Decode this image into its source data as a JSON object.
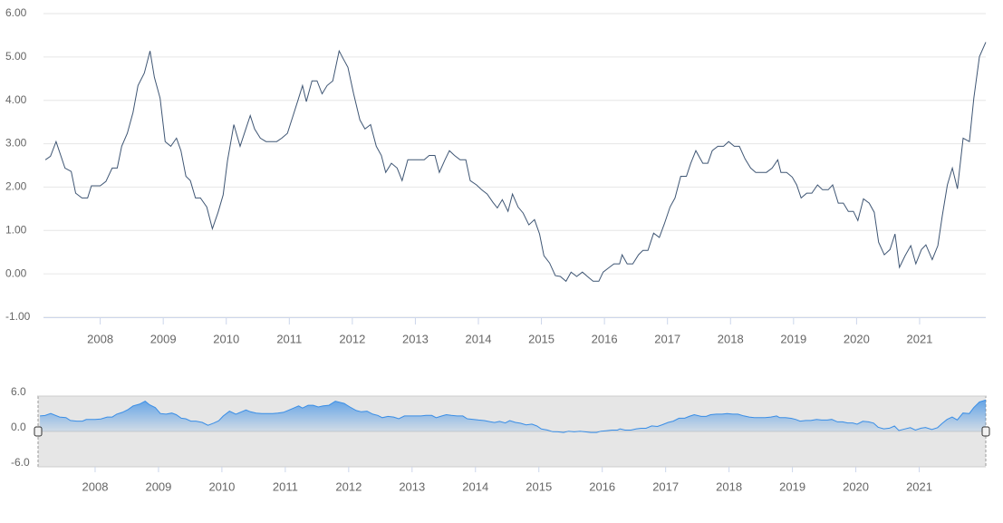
{
  "chart_data": {
    "type": "line",
    "x": [
      2007.13,
      2007.21,
      2007.3,
      2007.44,
      2007.54,
      2007.61,
      2007.71,
      2007.8,
      2007.86,
      2008.0,
      2008.09,
      2008.19,
      2008.27,
      2008.34,
      2008.43,
      2008.52,
      2008.6,
      2008.7,
      2008.79,
      2008.86,
      2008.95,
      2009.03,
      2009.12,
      2009.21,
      2009.28,
      2009.36,
      2009.43,
      2009.51,
      2009.59,
      2009.69,
      2009.78,
      2009.87,
      2009.95,
      2010.02,
      2010.12,
      2010.22,
      2010.31,
      2010.38,
      2010.45,
      2010.54,
      2010.63,
      2010.71,
      2010.8,
      2010.88,
      2010.97,
      2011.06,
      2011.14,
      2011.21,
      2011.27,
      2011.36,
      2011.44,
      2011.52,
      2011.6,
      2011.69,
      2011.79,
      2011.86,
      2011.93,
      2012.02,
      2012.12,
      2012.2,
      2012.29,
      2012.38,
      2012.46,
      2012.53,
      2012.62,
      2012.71,
      2012.79,
      2012.88,
      2012.96,
      2013.05,
      2013.14,
      2013.22,
      2013.31,
      2013.38,
      2013.47,
      2013.54,
      2013.62,
      2013.71,
      2013.8,
      2013.87,
      2013.97,
      2014.05,
      2014.14,
      2014.23,
      2014.3,
      2014.38,
      2014.47,
      2014.54,
      2014.63,
      2014.71,
      2014.8,
      2014.89,
      2014.97,
      2015.04,
      2015.13,
      2015.22,
      2015.3,
      2015.39,
      2015.47,
      2015.56,
      2015.65,
      2015.73,
      2015.82,
      2015.91,
      2015.98,
      2016.06,
      2016.15,
      2016.24,
      2016.28,
      2016.36,
      2016.45,
      2016.54,
      2016.61,
      2016.69,
      2016.78,
      2016.87,
      2016.95,
      2017.04,
      2017.12,
      2017.21,
      2017.3,
      2017.37,
      2017.45,
      2017.56,
      2017.64,
      2017.71,
      2017.8,
      2017.89,
      2017.97,
      2018.06,
      2018.14,
      2018.23,
      2018.32,
      2018.4,
      2018.49,
      2018.57,
      2018.66,
      2018.75,
      2018.8,
      2018.89,
      2018.98,
      2019.05,
      2019.12,
      2019.21,
      2019.29,
      2019.38,
      2019.46,
      2019.55,
      2019.62,
      2019.71,
      2019.79,
      2019.87,
      2019.95,
      2020.02,
      2020.11,
      2020.2,
      2020.28,
      2020.35,
      2020.44,
      2020.53,
      2020.61,
      2020.68,
      2020.77,
      2020.86,
      2020.94,
      2021.03,
      2021.1,
      2021.2,
      2021.29,
      2021.36,
      2021.44,
      2021.52,
      2021.6,
      2021.69,
      2021.79,
      2021.86,
      2021.95,
      2022.05
    ],
    "series": [
      {
        "color": "#3f5674",
        "values": [
          2.63,
          2.71,
          3.05,
          2.44,
          2.36,
          1.86,
          1.75,
          1.75,
          2.03,
          2.03,
          2.13,
          2.44,
          2.44,
          2.94,
          3.24,
          3.72,
          4.34,
          4.63,
          5.14,
          4.53,
          4.05,
          3.05,
          2.94,
          3.13,
          2.84,
          2.25,
          2.15,
          1.75,
          1.75,
          1.54,
          1.04,
          1.42,
          1.82,
          2.61,
          3.44,
          2.94,
          3.34,
          3.65,
          3.34,
          3.13,
          3.05,
          3.05,
          3.05,
          3.13,
          3.24,
          3.65,
          4.01,
          4.34,
          3.97,
          4.45,
          4.45,
          4.15,
          4.34,
          4.45,
          5.14,
          4.95,
          4.76,
          4.15,
          3.55,
          3.34,
          3.44,
          2.94,
          2.73,
          2.34,
          2.55,
          2.44,
          2.15,
          2.63,
          2.63,
          2.63,
          2.63,
          2.73,
          2.73,
          2.34,
          2.63,
          2.84,
          2.73,
          2.63,
          2.63,
          2.15,
          2.05,
          1.94,
          1.84,
          1.65,
          1.52,
          1.71,
          1.44,
          1.84,
          1.54,
          1.4,
          1.13,
          1.25,
          0.92,
          0.42,
          0.25,
          -0.04,
          -0.06,
          -0.17,
          0.04,
          -0.06,
          0.04,
          -0.06,
          -0.17,
          -0.17,
          0.04,
          0.13,
          0.23,
          0.23,
          0.44,
          0.23,
          0.23,
          0.44,
          0.54,
          0.54,
          0.94,
          0.84,
          1.15,
          1.54,
          1.75,
          2.25,
          2.25,
          2.55,
          2.84,
          2.55,
          2.55,
          2.84,
          2.94,
          2.94,
          3.05,
          2.94,
          2.94,
          2.65,
          2.44,
          2.34,
          2.34,
          2.34,
          2.44,
          2.63,
          2.34,
          2.34,
          2.23,
          2.05,
          1.75,
          1.86,
          1.86,
          2.05,
          1.94,
          1.94,
          2.05,
          1.63,
          1.63,
          1.44,
          1.44,
          1.23,
          1.73,
          1.63,
          1.42,
          0.73,
          0.44,
          0.56,
          0.92,
          0.15,
          0.42,
          0.65,
          0.23,
          0.56,
          0.67,
          0.33,
          0.65,
          1.34,
          2.05,
          2.44,
          1.96,
          3.13,
          3.05,
          4.05,
          5.01,
          5.34
        ]
      }
    ],
    "xlim": [
      2007.1,
      2022.05
    ],
    "xticks": [
      2008,
      2009,
      2010,
      2011,
      2012,
      2013,
      2014,
      2015,
      2016,
      2017,
      2018,
      2019,
      2020,
      2021
    ],
    "ylim": [
      -1,
      6
    ],
    "yticks": [
      {
        "value": -1,
        "label": "-1.00"
      },
      {
        "value": 0,
        "label": "0.00"
      },
      {
        "value": 1,
        "label": "1.00"
      },
      {
        "value": 2,
        "label": "2.00"
      },
      {
        "value": 3,
        "label": "3.00"
      },
      {
        "value": 4,
        "label": "4.00"
      },
      {
        "value": 5,
        "label": "5.00"
      },
      {
        "value": 6,
        "label": "6.00"
      }
    ],
    "grid": true,
    "navigator": {
      "color": "#3a8ee6",
      "ylim": [
        -6,
        6
      ],
      "yticks": [
        {
          "value": -6,
          "label": "-6.0"
        },
        {
          "value": 0,
          "label": "0.0"
        },
        {
          "value": 6,
          "label": "6.0"
        }
      ]
    }
  }
}
